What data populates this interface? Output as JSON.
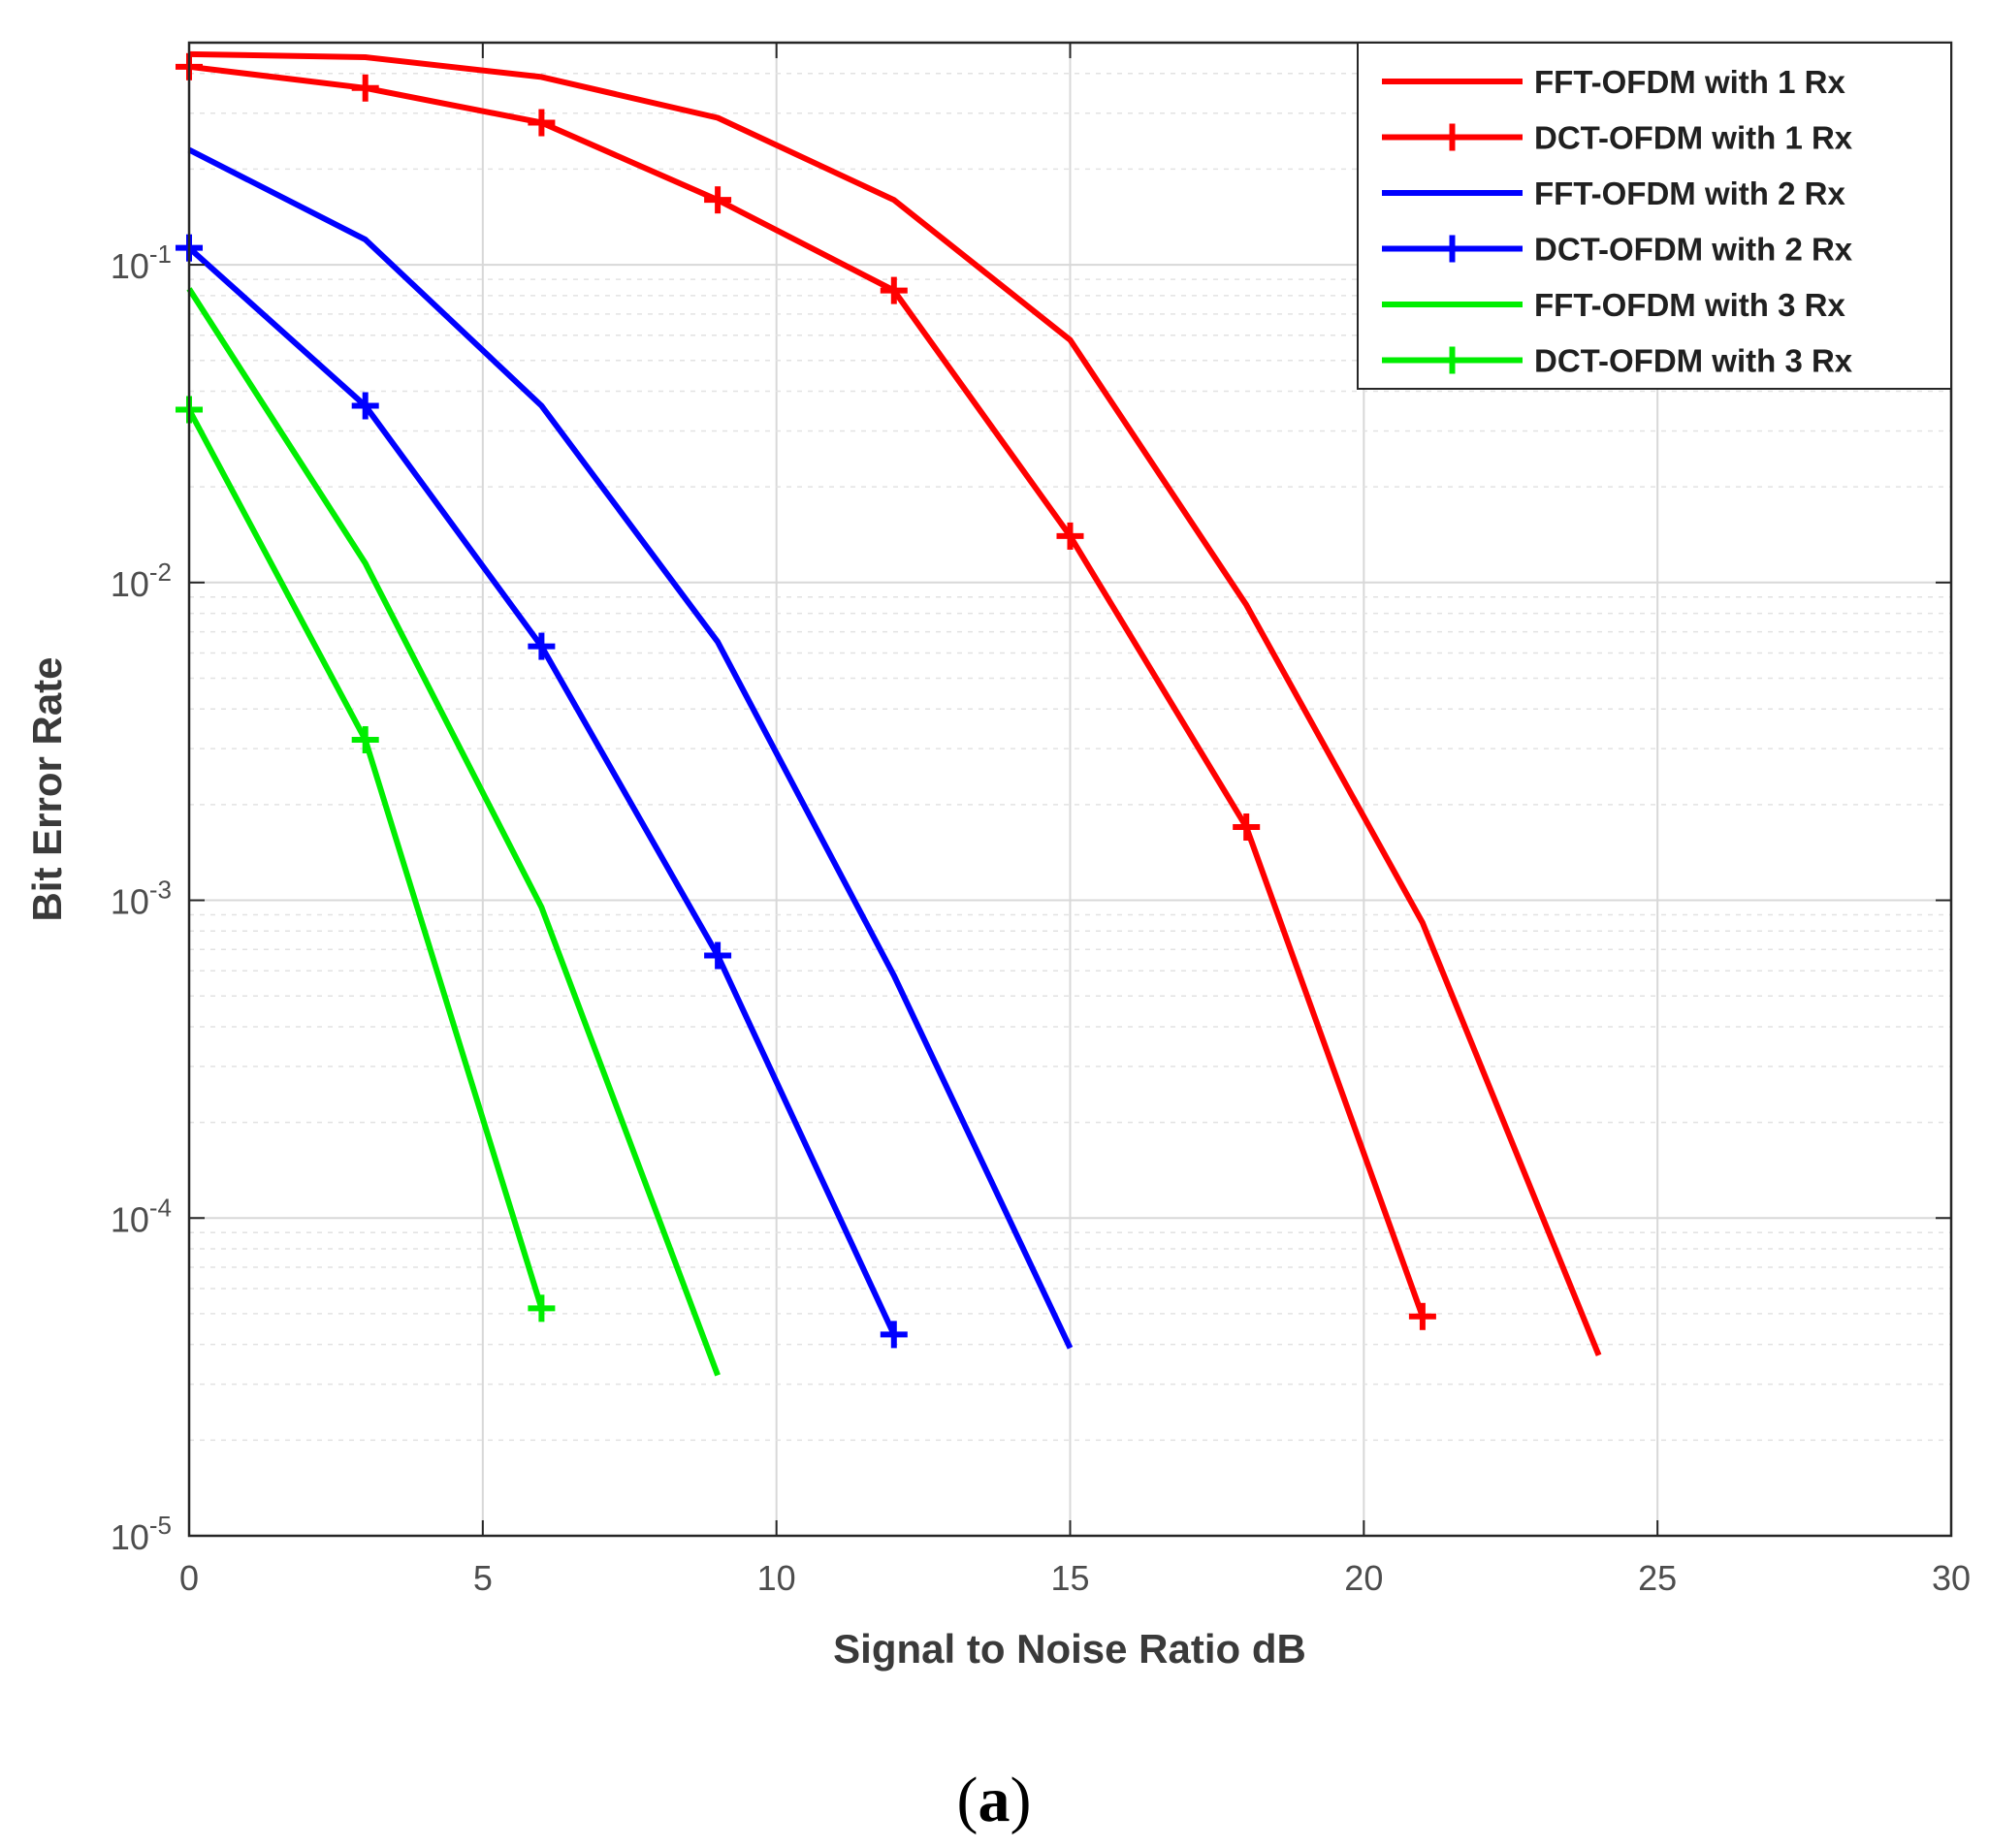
{
  "chart_data": {
    "type": "line",
    "title": "",
    "xlabel": "Signal to Noise Ratio dB",
    "ylabel": "Bit Error Rate",
    "xlim": [
      0,
      30
    ],
    "ylim": [
      1e-05,
      0.5
    ],
    "yscale": "log",
    "grid": true,
    "legend_position": "top-right",
    "xticks": [
      0,
      5,
      10,
      15,
      20,
      25,
      30
    ],
    "yticks": [
      {
        "value": 0.1,
        "base": "10",
        "exp": "-1"
      },
      {
        "value": 0.01,
        "base": "10",
        "exp": "-2"
      },
      {
        "value": 0.001,
        "base": "10",
        "exp": "-3"
      },
      {
        "value": 0.0001,
        "base": "10",
        "exp": "-4"
      },
      {
        "value": 1e-05,
        "base": "10",
        "exp": "-5"
      }
    ],
    "series": [
      {
        "name": "FFT-OFDM with 1 Rx",
        "color": "#ff0000",
        "marker": "none",
        "x": [
          0,
          3,
          6,
          9,
          12,
          15,
          18,
          21,
          24
        ],
        "y": [
          0.46,
          0.45,
          0.39,
          0.29,
          0.16,
          0.058,
          0.0085,
          0.00085,
          3.7e-05
        ]
      },
      {
        "name": "DCT-OFDM with 1 Rx",
        "color": "#ff0000",
        "marker": "plus",
        "x": [
          0,
          3,
          6,
          9,
          12,
          15,
          18,
          21
        ],
        "y": [
          0.42,
          0.36,
          0.28,
          0.16,
          0.083,
          0.014,
          0.0017,
          4.9e-05
        ]
      },
      {
        "name": "FFT-OFDM with 2 Rx",
        "color": "#0000ff",
        "marker": "none",
        "x": [
          0,
          3,
          6,
          9,
          12,
          15
        ],
        "y": [
          0.23,
          0.12,
          0.036,
          0.0065,
          0.00058,
          3.9e-05
        ]
      },
      {
        "name": "DCT-OFDM with 2 Rx",
        "color": "#0000ff",
        "marker": "plus",
        "x": [
          0,
          3,
          6,
          9,
          12
        ],
        "y": [
          0.113,
          0.036,
          0.0063,
          0.00067,
          4.3e-05
        ]
      },
      {
        "name": "FFT-OFDM with 3 Rx",
        "color": "#00ee00",
        "marker": "none",
        "x": [
          0,
          3,
          6,
          9
        ],
        "y": [
          0.084,
          0.0115,
          0.00095,
          3.2e-05
        ]
      },
      {
        "name": "DCT-OFDM with 3 Rx",
        "color": "#00ee00",
        "marker": "plus",
        "x": [
          0,
          3,
          6
        ],
        "y": [
          0.035,
          0.0032,
          5.2e-05
        ]
      }
    ]
  },
  "caption": {
    "open": "(",
    "letter": "a",
    "close": ")"
  }
}
